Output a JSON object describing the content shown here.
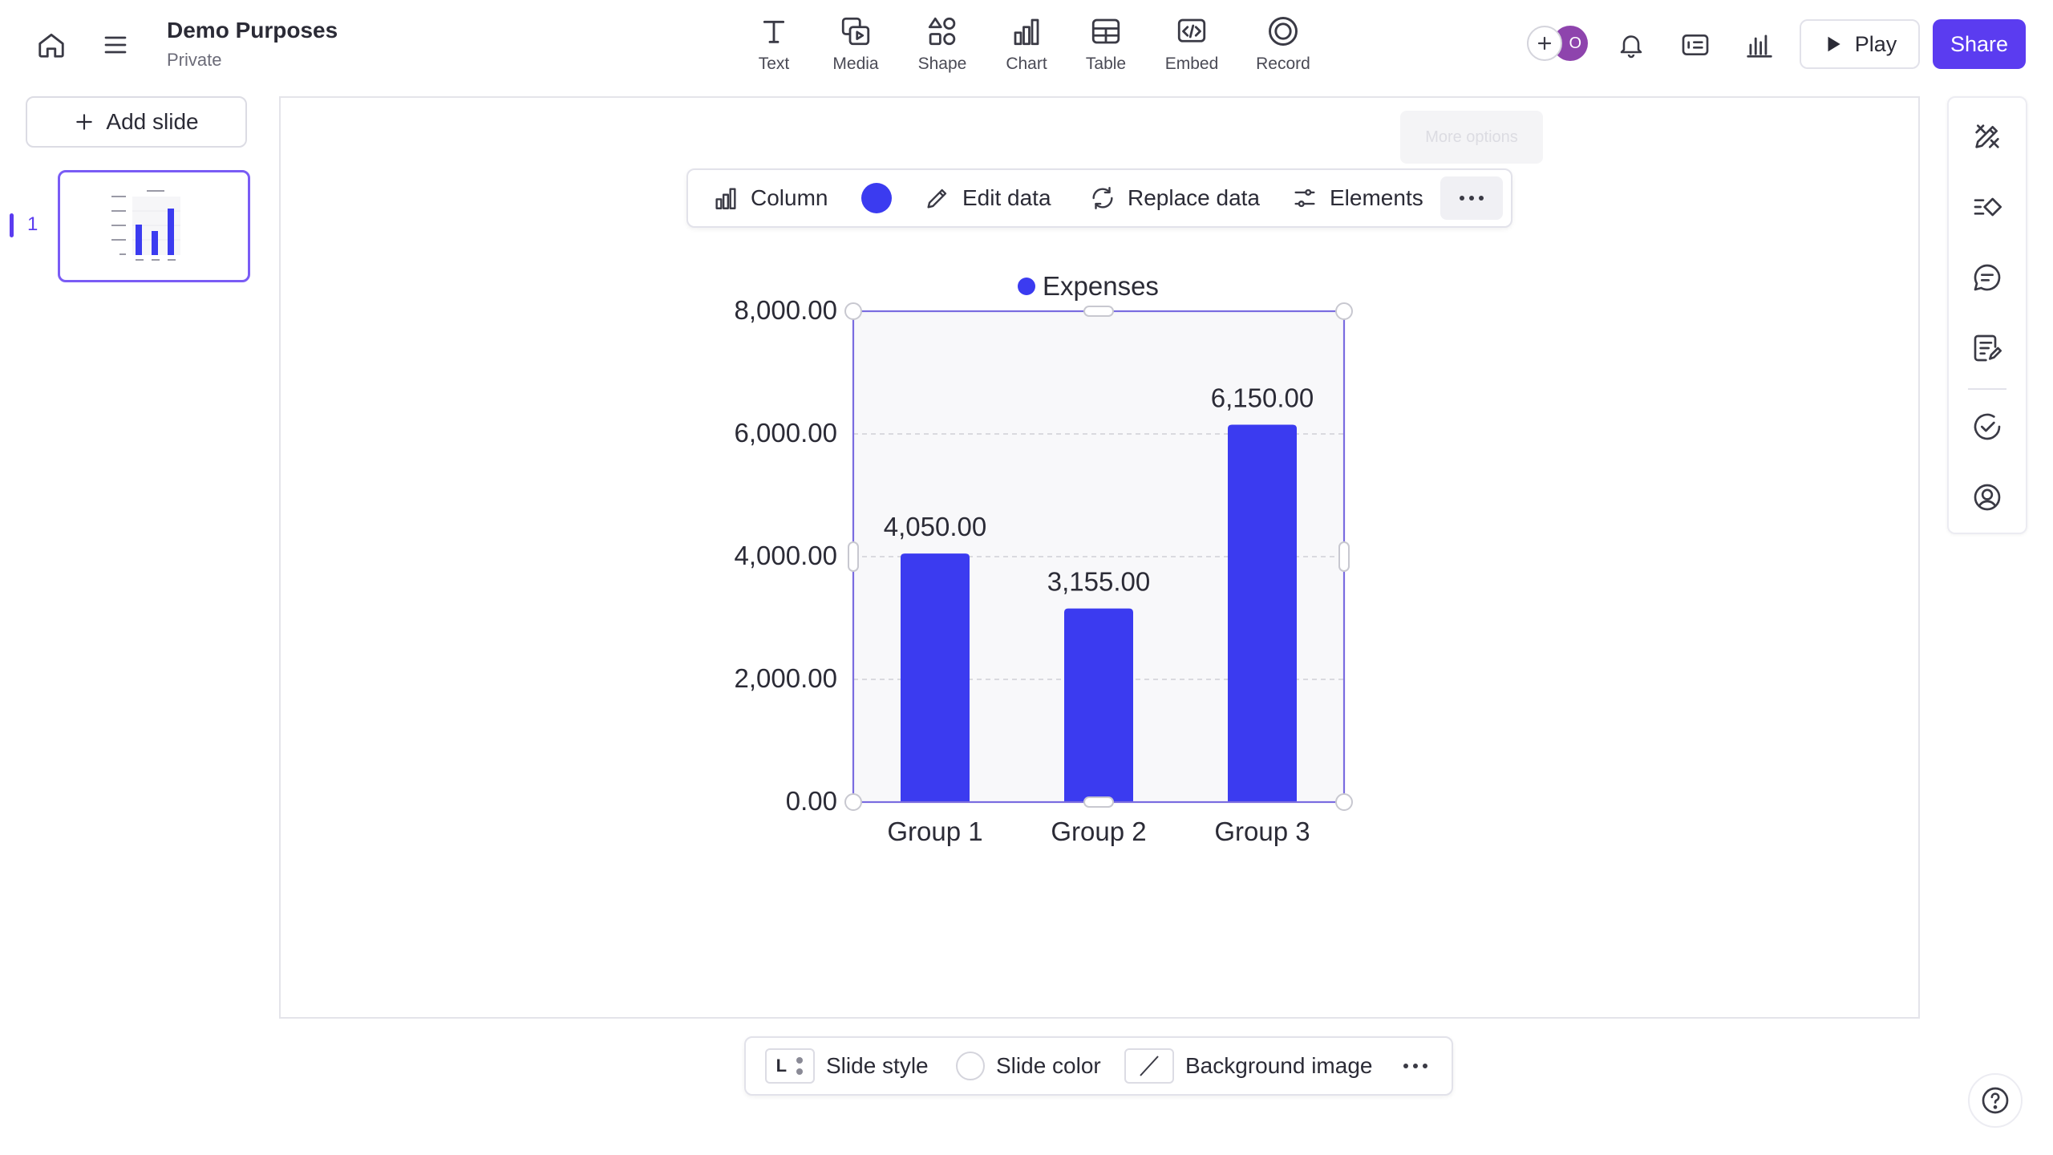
{
  "header": {
    "doc_title": "Demo Purposes",
    "doc_subtitle": "Private",
    "tools": [
      {
        "label": "Text",
        "icon": "text-icon"
      },
      {
        "label": "Media",
        "icon": "media-icon"
      },
      {
        "label": "Shape",
        "icon": "shape-icon"
      },
      {
        "label": "Chart",
        "icon": "chart-icon"
      },
      {
        "label": "Table",
        "icon": "table-icon"
      },
      {
        "label": "Embed",
        "icon": "embed-icon"
      },
      {
        "label": "Record",
        "icon": "record-icon"
      }
    ],
    "avatar_initial": "O",
    "play_label": "Play",
    "share_label": "Share"
  },
  "sidebar": {
    "add_slide_label": "Add slide",
    "slides": [
      {
        "number": "1"
      }
    ]
  },
  "chart_toolbar": {
    "type_label": "Column",
    "color": "#3b3bf0",
    "edit_data_label": "Edit data",
    "replace_data_label": "Replace data",
    "elements_label": "Elements",
    "tooltip": "More options"
  },
  "chart_data": {
    "type": "bar",
    "categories": [
      "Group 1",
      "Group 2",
      "Group 3"
    ],
    "series": [
      {
        "name": "Expenses",
        "values": [
          4050,
          3155,
          6150
        ],
        "color": "#3b3bf0"
      }
    ],
    "data_labels": [
      "4,050.00",
      "3,155.00",
      "6,150.00"
    ],
    "y_ticks": [
      {
        "value": 0,
        "label": "0.00"
      },
      {
        "value": 2000,
        "label": "2,000.00"
      },
      {
        "value": 4000,
        "label": "4,000.00"
      },
      {
        "value": 6000,
        "label": "6,000.00"
      },
      {
        "value": 8000,
        "label": "8,000.00"
      }
    ],
    "ylim": [
      0,
      8000
    ],
    "legend_position": "top",
    "grid": true
  },
  "bottom_bar": {
    "slide_style_label": "Slide style",
    "slide_style_letter": "L",
    "slide_color_label": "Slide color",
    "background_image_label": "Background image"
  },
  "colors": {
    "accent": "#5b3cf0",
    "bar": "#3b3bf0",
    "selection": "#7a6ce0"
  }
}
